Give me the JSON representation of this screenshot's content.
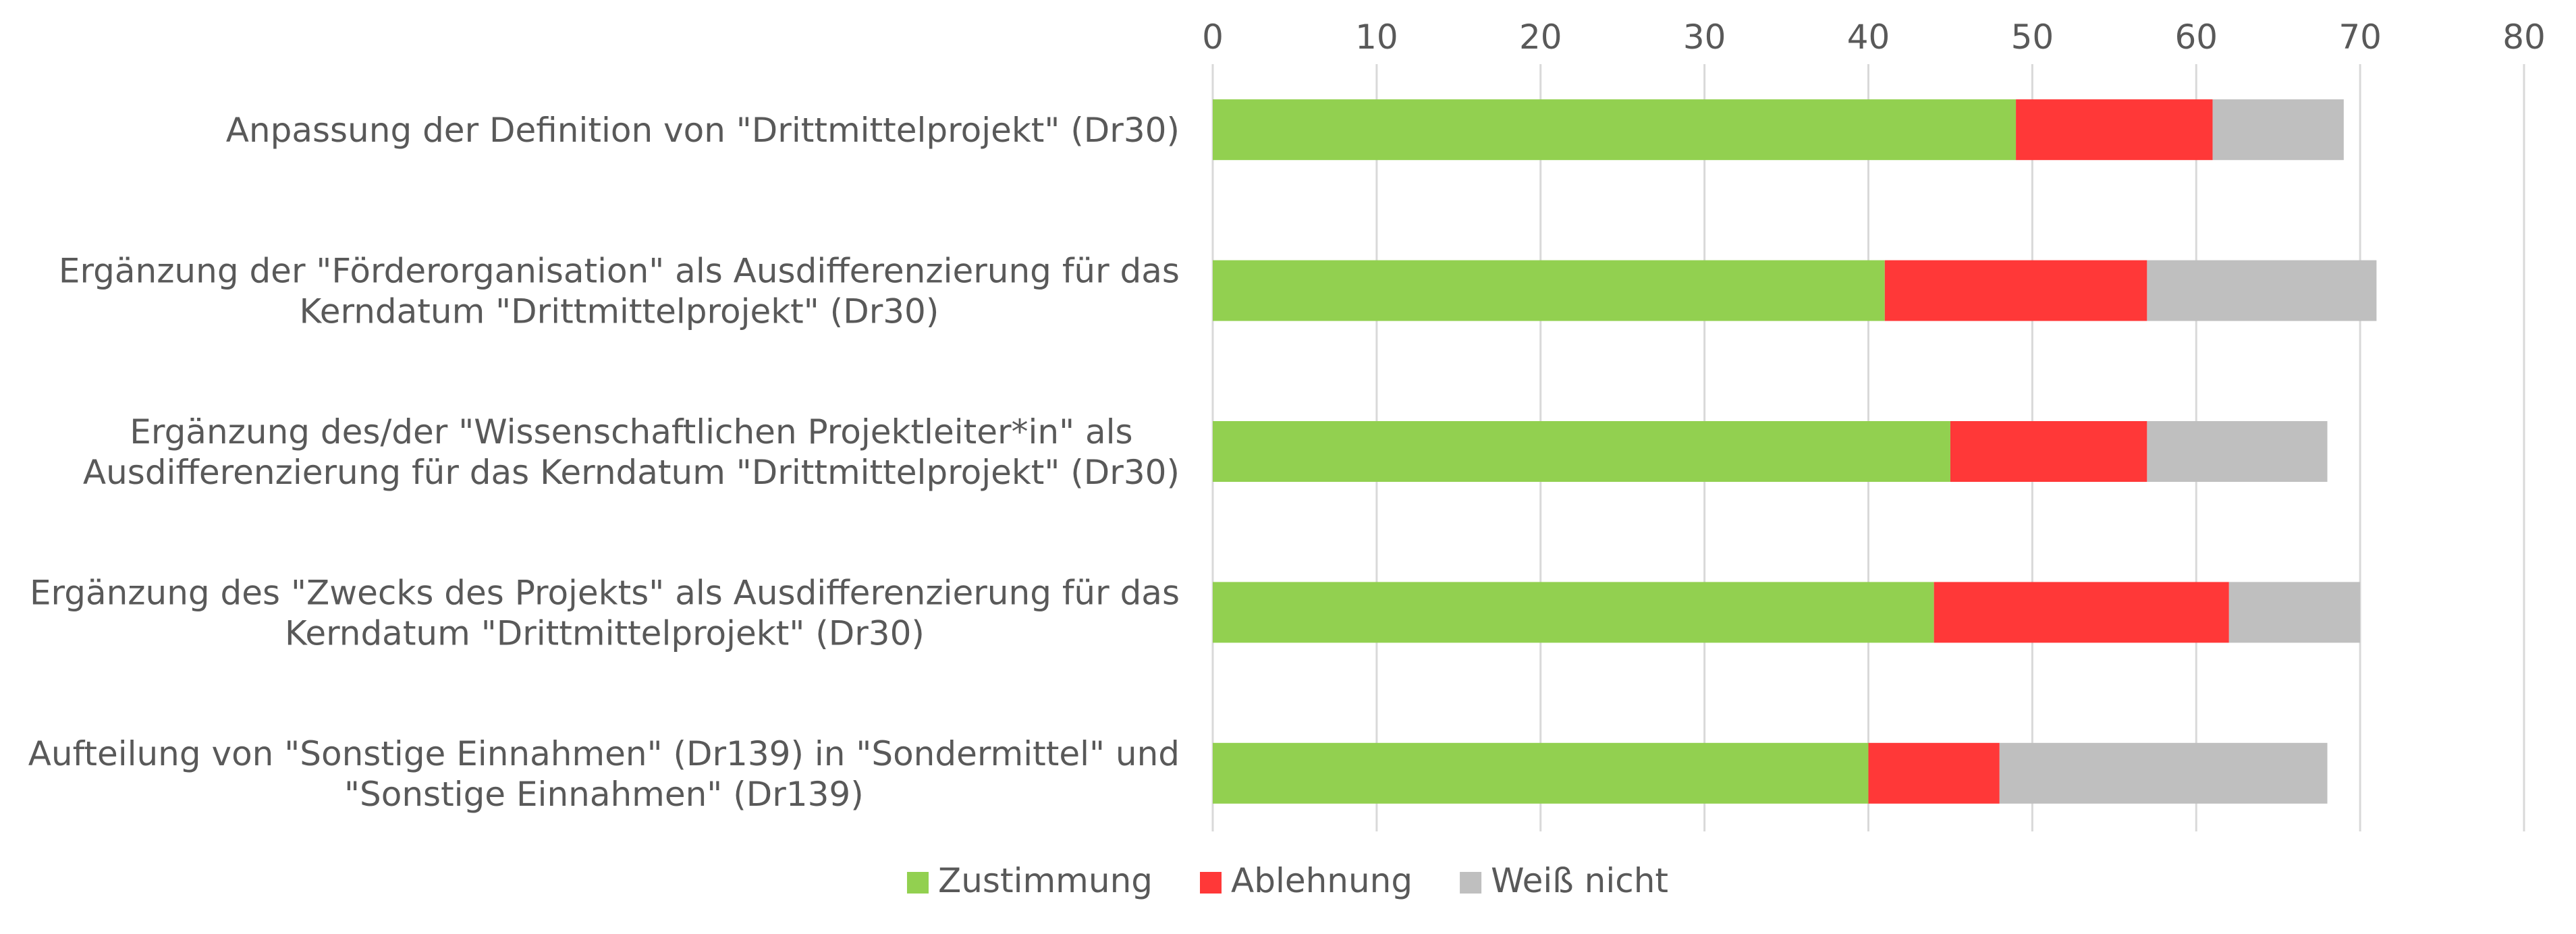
{
  "chart_data": {
    "type": "bar",
    "orientation": "horizontal",
    "stacked": true,
    "title": "",
    "xlabel": "",
    "ylabel": "",
    "xlim": [
      0,
      80
    ],
    "x_ticks": [
      0,
      10,
      20,
      30,
      40,
      50,
      60,
      70,
      80
    ],
    "x_axis_position": "top",
    "grid": true,
    "legend_position": "bottom",
    "categories": [
      [
        "Anpassung der Definition von \"Drittmittelprojekt\" (Dr30)"
      ],
      [
        "Ergänzung der \"Förderorganisation\" als Ausdifferenzierung für das",
        "Kerndatum \"Drittmittelprojekt\" (Dr30)"
      ],
      [
        "Ergänzung des/der \"Wissenschaftlichen Projektleiter*in\" als",
        "Ausdifferenzierung für das Kerndatum \"Drittmittelprojekt\" (Dr30)"
      ],
      [
        "Ergänzung des \"Zwecks des Projekts\" als Ausdifferenzierung für das",
        "Kerndatum \"Drittmittelprojekt\" (Dr30)"
      ],
      [
        "Aufteilung von \"Sonstige Einnahmen\" (Dr139) in \"Sondermittel\" und",
        "\"Sonstige Einnahmen\" (Dr139)"
      ]
    ],
    "series": [
      {
        "name": "Zustimmung",
        "color": "#92d050",
        "values": [
          49,
          41,
          45,
          44,
          40
        ]
      },
      {
        "name": "Ablehnung",
        "color": "#ff3838",
        "values": [
          12,
          16,
          12,
          18,
          8
        ]
      },
      {
        "name": "Weiß nicht",
        "color": "#bfbfbf",
        "values": [
          8,
          14,
          11,
          8,
          20
        ]
      }
    ]
  }
}
